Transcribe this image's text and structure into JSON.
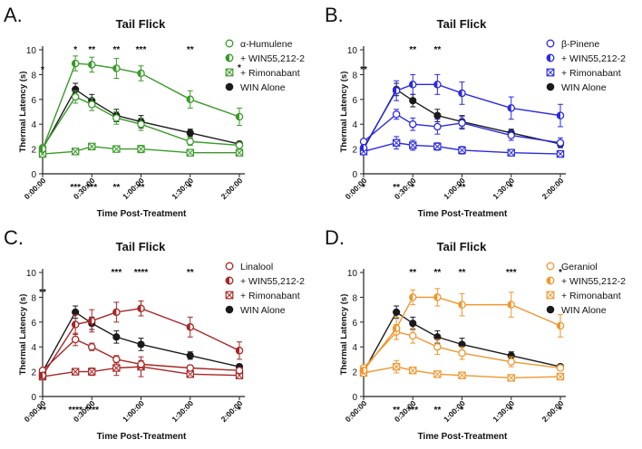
{
  "chart_data": [
    {
      "type": "line",
      "panel_label": "A.",
      "title": "Tail Flick",
      "xlabel": "Time Post-Treatment",
      "ylabel": "Thermal Latency (s)",
      "ylim": [
        0,
        10
      ],
      "yticks": [
        0,
        2,
        4,
        6,
        8,
        10
      ],
      "x": [
        0,
        20,
        30,
        45,
        60,
        90,
        120
      ],
      "xticks": [
        0,
        30,
        60,
        90,
        120
      ],
      "xtick_labels": [
        "0:00:00",
        "0:30:00",
        "1:00:00",
        "1:30:00",
        "2:00:00"
      ],
      "accent": "#3b9a2a",
      "series": [
        {
          "name": "α-Humulene",
          "marker": "open",
          "color": "#3b9a2a",
          "values": [
            2.1,
            6.2,
            5.6,
            4.5,
            4.0,
            2.6,
            2.3
          ],
          "errors": [
            0.2,
            0.5,
            0.5,
            0.5,
            0.5,
            0.3,
            0.2
          ]
        },
        {
          "name": "+ WIN55,212-2",
          "marker": "half",
          "color": "#3b9a2a",
          "values": [
            2.0,
            8.9,
            8.8,
            8.5,
            8.1,
            6.0,
            4.6
          ],
          "errors": [
            0.2,
            0.6,
            0.6,
            0.8,
            0.6,
            0.7,
            0.7
          ]
        },
        {
          "name": "+ Rimonabant",
          "marker": "cross",
          "color": "#3b9a2a",
          "values": [
            1.6,
            1.8,
            2.2,
            2.0,
            2.0,
            1.7,
            1.7
          ],
          "errors": [
            0.1,
            0.1,
            0.2,
            0.1,
            0.3,
            0.1,
            0.1
          ]
        },
        {
          "name": "WIN Alone",
          "marker": "filled",
          "color": "#1a1a1a",
          "values": [
            2.0,
            6.8,
            5.9,
            4.7,
            4.2,
            3.3,
            2.4
          ],
          "errors": [
            0.2,
            0.5,
            0.5,
            0.5,
            0.5,
            0.3,
            0.2
          ]
        }
      ],
      "annotations_top": [
        {
          "x": 0,
          "text": "*"
        },
        {
          "x": 20,
          "text": "*"
        },
        {
          "x": 30,
          "text": "**"
        },
        {
          "x": 45,
          "text": "**"
        },
        {
          "x": 60,
          "text": "***"
        },
        {
          "x": 90,
          "text": "**"
        },
        {
          "x": 120,
          "text": "*"
        }
      ],
      "annotations_bottom": [
        {
          "x": 20,
          "text": "***"
        },
        {
          "x": 30,
          "text": "***"
        },
        {
          "x": 45,
          "text": "**"
        },
        {
          "x": 60,
          "text": "**"
        },
        {
          "x": 90,
          "text": "*"
        }
      ]
    },
    {
      "type": "line",
      "panel_label": "B.",
      "title": "Tail Flick",
      "xlabel": "Time Post-Treatment",
      "ylabel": "Thermal Latency (s)",
      "ylim": [
        0,
        10
      ],
      "yticks": [
        0,
        2,
        4,
        6,
        8,
        10
      ],
      "x": [
        0,
        20,
        30,
        45,
        60,
        90,
        120
      ],
      "xticks": [
        0,
        30,
        60,
        90,
        120
      ],
      "xtick_labels": [
        "0:00:00",
        "0:30:00",
        "1:00:00",
        "1:30:00",
        "2:00:00"
      ],
      "accent": "#2a2ae0",
      "series": [
        {
          "name": "β-Pinene",
          "marker": "open",
          "color": "#2a2ae0",
          "values": [
            2.6,
            4.8,
            4.0,
            3.8,
            4.1,
            3.1,
            2.5
          ],
          "errors": [
            0.2,
            0.4,
            0.5,
            0.6,
            0.5,
            0.4,
            0.4
          ]
        },
        {
          "name": "+ WIN55,212-2",
          "marker": "half",
          "color": "#2a2ae0",
          "values": [
            2.1,
            6.7,
            7.2,
            7.2,
            6.5,
            5.3,
            4.7
          ],
          "errors": [
            0.2,
            0.8,
            0.8,
            0.8,
            0.9,
            0.9,
            0.9
          ]
        },
        {
          "name": "+ Rimonabant",
          "marker": "cross",
          "color": "#2a2ae0",
          "values": [
            1.8,
            2.5,
            2.3,
            2.2,
            1.9,
            1.7,
            1.6
          ],
          "errors": [
            0.1,
            0.5,
            0.4,
            0.3,
            0.3,
            0.2,
            0.1
          ]
        },
        {
          "name": "WIN Alone",
          "marker": "filled",
          "color": "#1a1a1a",
          "values": [
            2.0,
            6.8,
            5.9,
            4.7,
            4.2,
            3.3,
            2.4
          ],
          "errors": [
            0.2,
            0.5,
            0.5,
            0.5,
            0.5,
            0.3,
            0.2
          ]
        }
      ],
      "annotations_top": [
        {
          "x": 0,
          "text": "**"
        },
        {
          "x": 30,
          "text": "**"
        },
        {
          "x": 45,
          "text": "**"
        }
      ],
      "annotations_bottom": [
        {
          "x": 0,
          "text": "*"
        },
        {
          "x": 20,
          "text": "**"
        },
        {
          "x": 30,
          "text": "*"
        },
        {
          "x": 60,
          "text": "**"
        },
        {
          "x": 90,
          "text": "*"
        }
      ]
    },
    {
      "type": "line",
      "panel_label": "C.",
      "title": "Tail Flick",
      "xlabel": "Time Post-Treatment",
      "ylabel": "Thermal Latency (s)",
      "ylim": [
        0,
        10
      ],
      "yticks": [
        0,
        2,
        4,
        6,
        8,
        10
      ],
      "x": [
        0,
        20,
        30,
        45,
        60,
        90,
        120
      ],
      "xticks": [
        0,
        30,
        60,
        90,
        120
      ],
      "xtick_labels": [
        "0:00:00",
        "0:30:00",
        "1:00:00",
        "1:30:00",
        "2:00:00"
      ],
      "accent": "#a82626",
      "series": [
        {
          "name": "Linalool",
          "marker": "open",
          "color": "#a82626",
          "values": [
            2.1,
            4.6,
            4.0,
            3.0,
            2.6,
            2.3,
            2.1
          ],
          "errors": [
            0.2,
            0.5,
            0.3,
            0.3,
            0.3,
            0.2,
            0.2
          ]
        },
        {
          "name": "+ WIN55,212-2",
          "marker": "half",
          "color": "#a82626",
          "values": [
            1.7,
            5.8,
            6.1,
            6.8,
            7.1,
            5.6,
            3.7
          ],
          "errors": [
            0.2,
            0.8,
            0.9,
            0.8,
            0.6,
            0.8,
            0.7
          ]
        },
        {
          "name": "+ Rimonabant",
          "marker": "cross",
          "color": "#a82626",
          "values": [
            1.6,
            2.0,
            2.0,
            2.3,
            2.4,
            1.8,
            1.7
          ],
          "errors": [
            0.1,
            0.2,
            0.3,
            0.6,
            0.8,
            0.2,
            0.2
          ]
        },
        {
          "name": "WIN Alone",
          "marker": "filled",
          "color": "#1a1a1a",
          "values": [
            2.0,
            6.8,
            5.9,
            4.8,
            4.2,
            3.3,
            2.4
          ],
          "errors": [
            0.2,
            0.5,
            0.5,
            0.5,
            0.5,
            0.3,
            0.2
          ]
        }
      ],
      "annotations_top": [
        {
          "x": 0,
          "text": "**"
        },
        {
          "x": 45,
          "text": "***"
        },
        {
          "x": 60,
          "text": "****"
        },
        {
          "x": 90,
          "text": "**"
        }
      ],
      "annotations_bottom": [
        {
          "x": 0,
          "text": "**"
        },
        {
          "x": 20,
          "text": "****"
        },
        {
          "x": 30,
          "text": "****"
        },
        {
          "x": 120,
          "text": "*"
        }
      ]
    },
    {
      "type": "line",
      "panel_label": "D.",
      "title": "Tail Flick",
      "xlabel": "Time Post-Treatment",
      "ylabel": "Thermal Latency (s)",
      "ylim": [
        0,
        10
      ],
      "yticks": [
        0,
        2,
        4,
        6,
        8,
        10
      ],
      "x": [
        0,
        20,
        30,
        45,
        60,
        90,
        120
      ],
      "xticks": [
        0,
        30,
        60,
        90,
        120
      ],
      "xtick_labels": [
        "0:00:00",
        "0:30:00",
        "1:00:00",
        "1:30:00",
        "2:00:00"
      ],
      "accent": "#f0962e",
      "series": [
        {
          "name": "Geraniol",
          "marker": "open",
          "color": "#f0962e",
          "values": [
            2.3,
            5.2,
            4.9,
            4.0,
            3.5,
            2.8,
            2.3
          ],
          "errors": [
            0.2,
            0.6,
            0.6,
            0.6,
            0.5,
            0.4,
            0.2
          ]
        },
        {
          "name": "+ WIN55,212-2",
          "marker": "half",
          "color": "#f0962e",
          "values": [
            2.1,
            5.5,
            8.0,
            8.0,
            7.4,
            7.4,
            5.7
          ],
          "errors": [
            0.2,
            0.9,
            0.6,
            0.7,
            0.9,
            1.0,
            0.9
          ]
        },
        {
          "name": "+ Rimonabant",
          "marker": "cross",
          "color": "#f0962e",
          "values": [
            1.9,
            2.4,
            2.1,
            1.8,
            1.7,
            1.5,
            1.6
          ],
          "errors": [
            0.1,
            0.5,
            0.2,
            0.2,
            0.1,
            0.1,
            0.1
          ]
        },
        {
          "name": "WIN Alone",
          "marker": "filled",
          "color": "#1a1a1a",
          "values": [
            2.0,
            6.8,
            5.9,
            4.8,
            4.2,
            3.3,
            2.4
          ],
          "errors": [
            0.2,
            0.5,
            0.5,
            0.5,
            0.5,
            0.3,
            0.2
          ]
        }
      ],
      "annotations_top": [
        {
          "x": 30,
          "text": "**"
        },
        {
          "x": 45,
          "text": "**"
        },
        {
          "x": 60,
          "text": "**"
        },
        {
          "x": 90,
          "text": "***"
        },
        {
          "x": 120,
          "text": "*"
        }
      ],
      "annotations_bottom": [
        {
          "x": 20,
          "text": "**"
        },
        {
          "x": 30,
          "text": "***"
        },
        {
          "x": 45,
          "text": "**"
        },
        {
          "x": 60,
          "text": "*"
        },
        {
          "x": 90,
          "text": "*"
        },
        {
          "x": 120,
          "text": "*"
        }
      ]
    }
  ]
}
